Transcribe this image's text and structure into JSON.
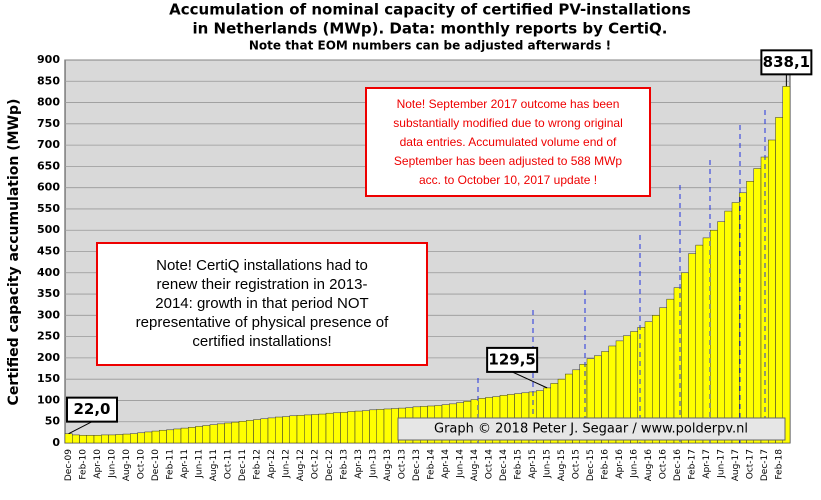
{
  "chart_data": {
    "type": "bar",
    "title": [
      "Accumulation  of nominal capacity of certified PV-installations",
      "in Netherlands (MWp). Data: monthly  reports by CertiQ."
    ],
    "subtitle": "Note that EOM numbers can be adjusted afterwards  !",
    "y_label": "Certified capacity accumulation (MWp)",
    "color": "#ffff00",
    "categories": [
      "Dec-09",
      null,
      "Feb-10",
      null,
      "Apr-10",
      null,
      "Jun-10",
      null,
      "Aug-10",
      null,
      "Oct-10",
      null,
      "Dec-10",
      null,
      "Feb-11",
      null,
      "Apr-11",
      null,
      "Jun-11",
      null,
      "Aug-11",
      null,
      "Oct-11",
      null,
      "Dec-11",
      null,
      "Feb-12",
      null,
      "Apr-12",
      null,
      "Jun-12",
      null,
      "Aug-12",
      null,
      "Oct-12",
      null,
      "Dec-12",
      null,
      "Feb-13",
      null,
      "Apr-13",
      null,
      "Jun-13",
      null,
      "Aug-13",
      null,
      "Oct-13",
      null,
      "Dec-13",
      null,
      "Feb-14",
      null,
      "Apr-14",
      null,
      "Jun-14",
      null,
      "Aug-14",
      null,
      "Oct-14",
      null,
      "Dec-14",
      null,
      "Feb-15",
      null,
      "Apr-15",
      null,
      "Jun-15",
      null,
      "Aug-15",
      null,
      "Oct-15",
      null,
      "Dec-15",
      null,
      "Feb-16",
      null,
      "Apr-16",
      null,
      "Jun-16",
      null,
      "Aug-16",
      null,
      "Oct-16",
      null,
      "Dec-16",
      null,
      "Feb-17",
      null,
      "Apr-17",
      null,
      "Jun-17",
      null,
      "Aug-17",
      null,
      "Oct-17",
      null,
      "Dec-17",
      null,
      "Feb-18",
      null
    ],
    "values": [
      22,
      19,
      18,
      18,
      18,
      19,
      19,
      20,
      21,
      22,
      24,
      26,
      28,
      30,
      31,
      33,
      35,
      37,
      39,
      41,
      43,
      45,
      47,
      49,
      51,
      53,
      55,
      57,
      59,
      61,
      62,
      64,
      65,
      66,
      67,
      68,
      70,
      71,
      72,
      74,
      75,
      76,
      78,
      79,
      80,
      81,
      82,
      83,
      85,
      86,
      87,
      88,
      90,
      92,
      95,
      98,
      102,
      105,
      107,
      109,
      112,
      114,
      116,
      118,
      120,
      123,
      129.5,
      140,
      150,
      162,
      172,
      185,
      198,
      205,
      215,
      228,
      240,
      252,
      262,
      272,
      285,
      300,
      318,
      338,
      365,
      400,
      445,
      465,
      482,
      500,
      520,
      545,
      565,
      588,
      615,
      645,
      672,
      712,
      765,
      838.1
    ],
    "value_labels": [
      "22,0",
      null,
      null,
      null,
      null,
      null,
      null,
      null,
      null,
      null,
      null,
      null,
      null,
      null,
      null,
      null,
      null,
      null,
      null,
      null,
      null,
      null,
      null,
      null,
      null,
      null,
      null,
      null,
      null,
      null,
      null,
      null,
      null,
      null,
      null,
      null,
      null,
      null,
      null,
      null,
      null,
      null,
      null,
      null,
      null,
      null,
      null,
      null,
      null,
      null,
      null,
      null,
      null,
      null,
      null,
      null,
      null,
      null,
      null,
      null,
      null,
      null,
      null,
      null,
      null,
      null,
      "129,5",
      null,
      null,
      null,
      null,
      null,
      null,
      null,
      null,
      null,
      null,
      null,
      null,
      null,
      null,
      null,
      null,
      null,
      null,
      null,
      null,
      null,
      null,
      null,
      null,
      null,
      null,
      null,
      null,
      null,
      null,
      null,
      null,
      "838,1"
    ],
    "ylim": [
      0,
      900
    ],
    "yticks": [
      0,
      50,
      100,
      150,
      200,
      250,
      300,
      350,
      400,
      450,
      500,
      550,
      600,
      650,
      700,
      750,
      800,
      850,
      900
    ],
    "grid": true,
    "note_right": [
      "Note! September 2017 outcome has been",
      "substantially modified due to wrong original",
      "data entries. Accumulated volume end of",
      "September has been adjusted to 588 MWp",
      "acc. to October 10, 2017 update !"
    ],
    "note_left": [
      "Note! CertiQ installations had to",
      "renew their registration in 2013-",
      "2014:  growth in that period NOT",
      "representative of physical presence of",
      "certified installations!"
    ],
    "credit": "Graph © 2018 Peter J. Segaar / www.polderpv.nl"
  }
}
